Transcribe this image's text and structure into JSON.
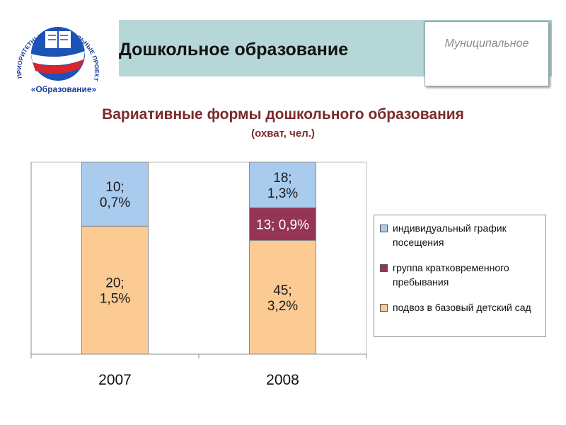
{
  "header": {
    "title": "Дошкольное образование",
    "badge_label": "Муниципальное"
  },
  "logo": {
    "ring_text": "ПРИОРИТЕТНЫЕ НАЦИОНАЛЬНЫЕ ПРОЕКТЫ",
    "name": "«Образование»"
  },
  "chart_title": "Вариативные формы дошкольного образования",
  "chart_subtitle": "(охват, чел.)",
  "legend": {
    "items": [
      {
        "label": "индивидуальный график посещения",
        "color": "#a9cbee"
      },
      {
        "label": "группа кратковременного пребывания",
        "color": "#953553"
      },
      {
        "label": "подвоз в базовый детский сад",
        "color": "#fccb93"
      }
    ]
  },
  "chart_data": {
    "type": "bar",
    "stacked": true,
    "normalized": true,
    "categories": [
      "2007",
      "2008"
    ],
    "series": [
      {
        "name": "подвоз в базовый детский сад",
        "values": [
          20,
          45
        ],
        "labels": [
          "20;\n1,5%",
          "45;\n3,2%"
        ],
        "color": "#fccb93"
      },
      {
        "name": "группа кратковременного пребывания",
        "values": [
          0,
          13
        ],
        "labels": [
          "",
          "13;  0,9%"
        ],
        "color": "#953553"
      },
      {
        "name": "индивидуальный график посещения",
        "values": [
          10,
          18
        ],
        "labels": [
          "10;\n0,7%",
          "18;\n1,3%"
        ],
        "color": "#a9cbee"
      }
    ],
    "legend_position": "right",
    "grid": false
  }
}
